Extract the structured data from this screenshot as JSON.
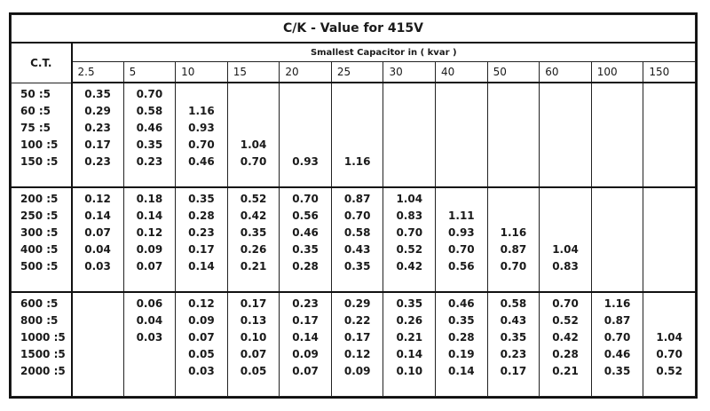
{
  "title": "C/K - Value for 415V",
  "ct_header": "C.T.",
  "subheader": "Smallest Capacitor in ( kvar )",
  "kvar_columns": [
    "2.5",
    "5",
    "10",
    "15",
    "20",
    "25",
    "30",
    "40",
    "50",
    "60",
    "100",
    "150"
  ],
  "groups": [
    {
      "ct": [
        "50 :5",
        "60 :5",
        "75 :5",
        "100 :5",
        "150 :5"
      ],
      "columns": [
        [
          "0.35",
          "0.29",
          "0.23",
          "0.17",
          "0.23"
        ],
        [
          "0.70",
          "0.58",
          "0.46",
          "0.35",
          "0.23"
        ],
        [
          "",
          "1.16",
          "0.93",
          "0.70",
          "0.46"
        ],
        [
          "",
          "",
          "",
          "1.04",
          "0.70"
        ],
        [
          "",
          "",
          "",
          "",
          "0.93"
        ],
        [
          "",
          "",
          "",
          "",
          "1.16"
        ],
        [
          "",
          "",
          "",
          "",
          ""
        ],
        [
          "",
          "",
          "",
          "",
          ""
        ],
        [
          "",
          "",
          "",
          "",
          ""
        ],
        [
          "",
          "",
          "",
          "",
          ""
        ],
        [
          "",
          "",
          "",
          "",
          ""
        ],
        [
          "",
          "",
          "",
          "",
          ""
        ]
      ]
    },
    {
      "ct": [
        "200 :5",
        "250 :5",
        "300 :5",
        "400 :5",
        "500 :5"
      ],
      "columns": [
        [
          "0.12",
          "0.14",
          "0.07",
          "0.04",
          "0.03"
        ],
        [
          "0.18",
          "0.14",
          "0.12",
          "0.09",
          "0.07"
        ],
        [
          "0.35",
          "0.28",
          "0.23",
          "0.17",
          "0.14"
        ],
        [
          "0.52",
          "0.42",
          "0.35",
          "0.26",
          "0.21"
        ],
        [
          "0.70",
          "0.56",
          "0.46",
          "0.35",
          "0.28"
        ],
        [
          "0.87",
          "0.70",
          "0.58",
          "0.43",
          "0.35"
        ],
        [
          "1.04",
          "0.83",
          "0.70",
          "0.52",
          "0.42"
        ],
        [
          "",
          "1.11",
          "0.93",
          "0.70",
          "0.56"
        ],
        [
          "",
          "",
          "1.16",
          "0.87",
          "0.70"
        ],
        [
          "",
          "",
          "",
          "1.04",
          "0.83"
        ],
        [
          "",
          "",
          "",
          "",
          ""
        ],
        [
          "",
          "",
          "",
          "",
          ""
        ]
      ]
    },
    {
      "ct": [
        "600 :5",
        "800 :5",
        "1000 :5",
        "1500 :5",
        "2000 :5"
      ],
      "columns": [
        [
          "",
          "",
          "",
          "",
          ""
        ],
        [
          "0.06",
          "0.04",
          "0.03",
          "",
          ""
        ],
        [
          "0.12",
          "0.09",
          "0.07",
          "0.05",
          "0.03"
        ],
        [
          "0.17",
          "0.13",
          "0.10",
          "0.07",
          "0.05"
        ],
        [
          "0.23",
          "0.17",
          "0.14",
          "0.09",
          "0.07"
        ],
        [
          "0.29",
          "0.22",
          "0.17",
          "0.12",
          "0.09"
        ],
        [
          "0.35",
          "0.26",
          "0.21",
          "0.14",
          "0.10"
        ],
        [
          "0.46",
          "0.35",
          "0.28",
          "0.19",
          "0.14"
        ],
        [
          "0.58",
          "0.43",
          "0.35",
          "0.23",
          "0.17"
        ],
        [
          "0.70",
          "0.52",
          "0.42",
          "0.28",
          "0.21"
        ],
        [
          "1.16",
          "0.87",
          "0.70",
          "0.46",
          "0.35"
        ],
        [
          "",
          "",
          "1.04",
          "0.70",
          "0.52"
        ]
      ]
    }
  ]
}
